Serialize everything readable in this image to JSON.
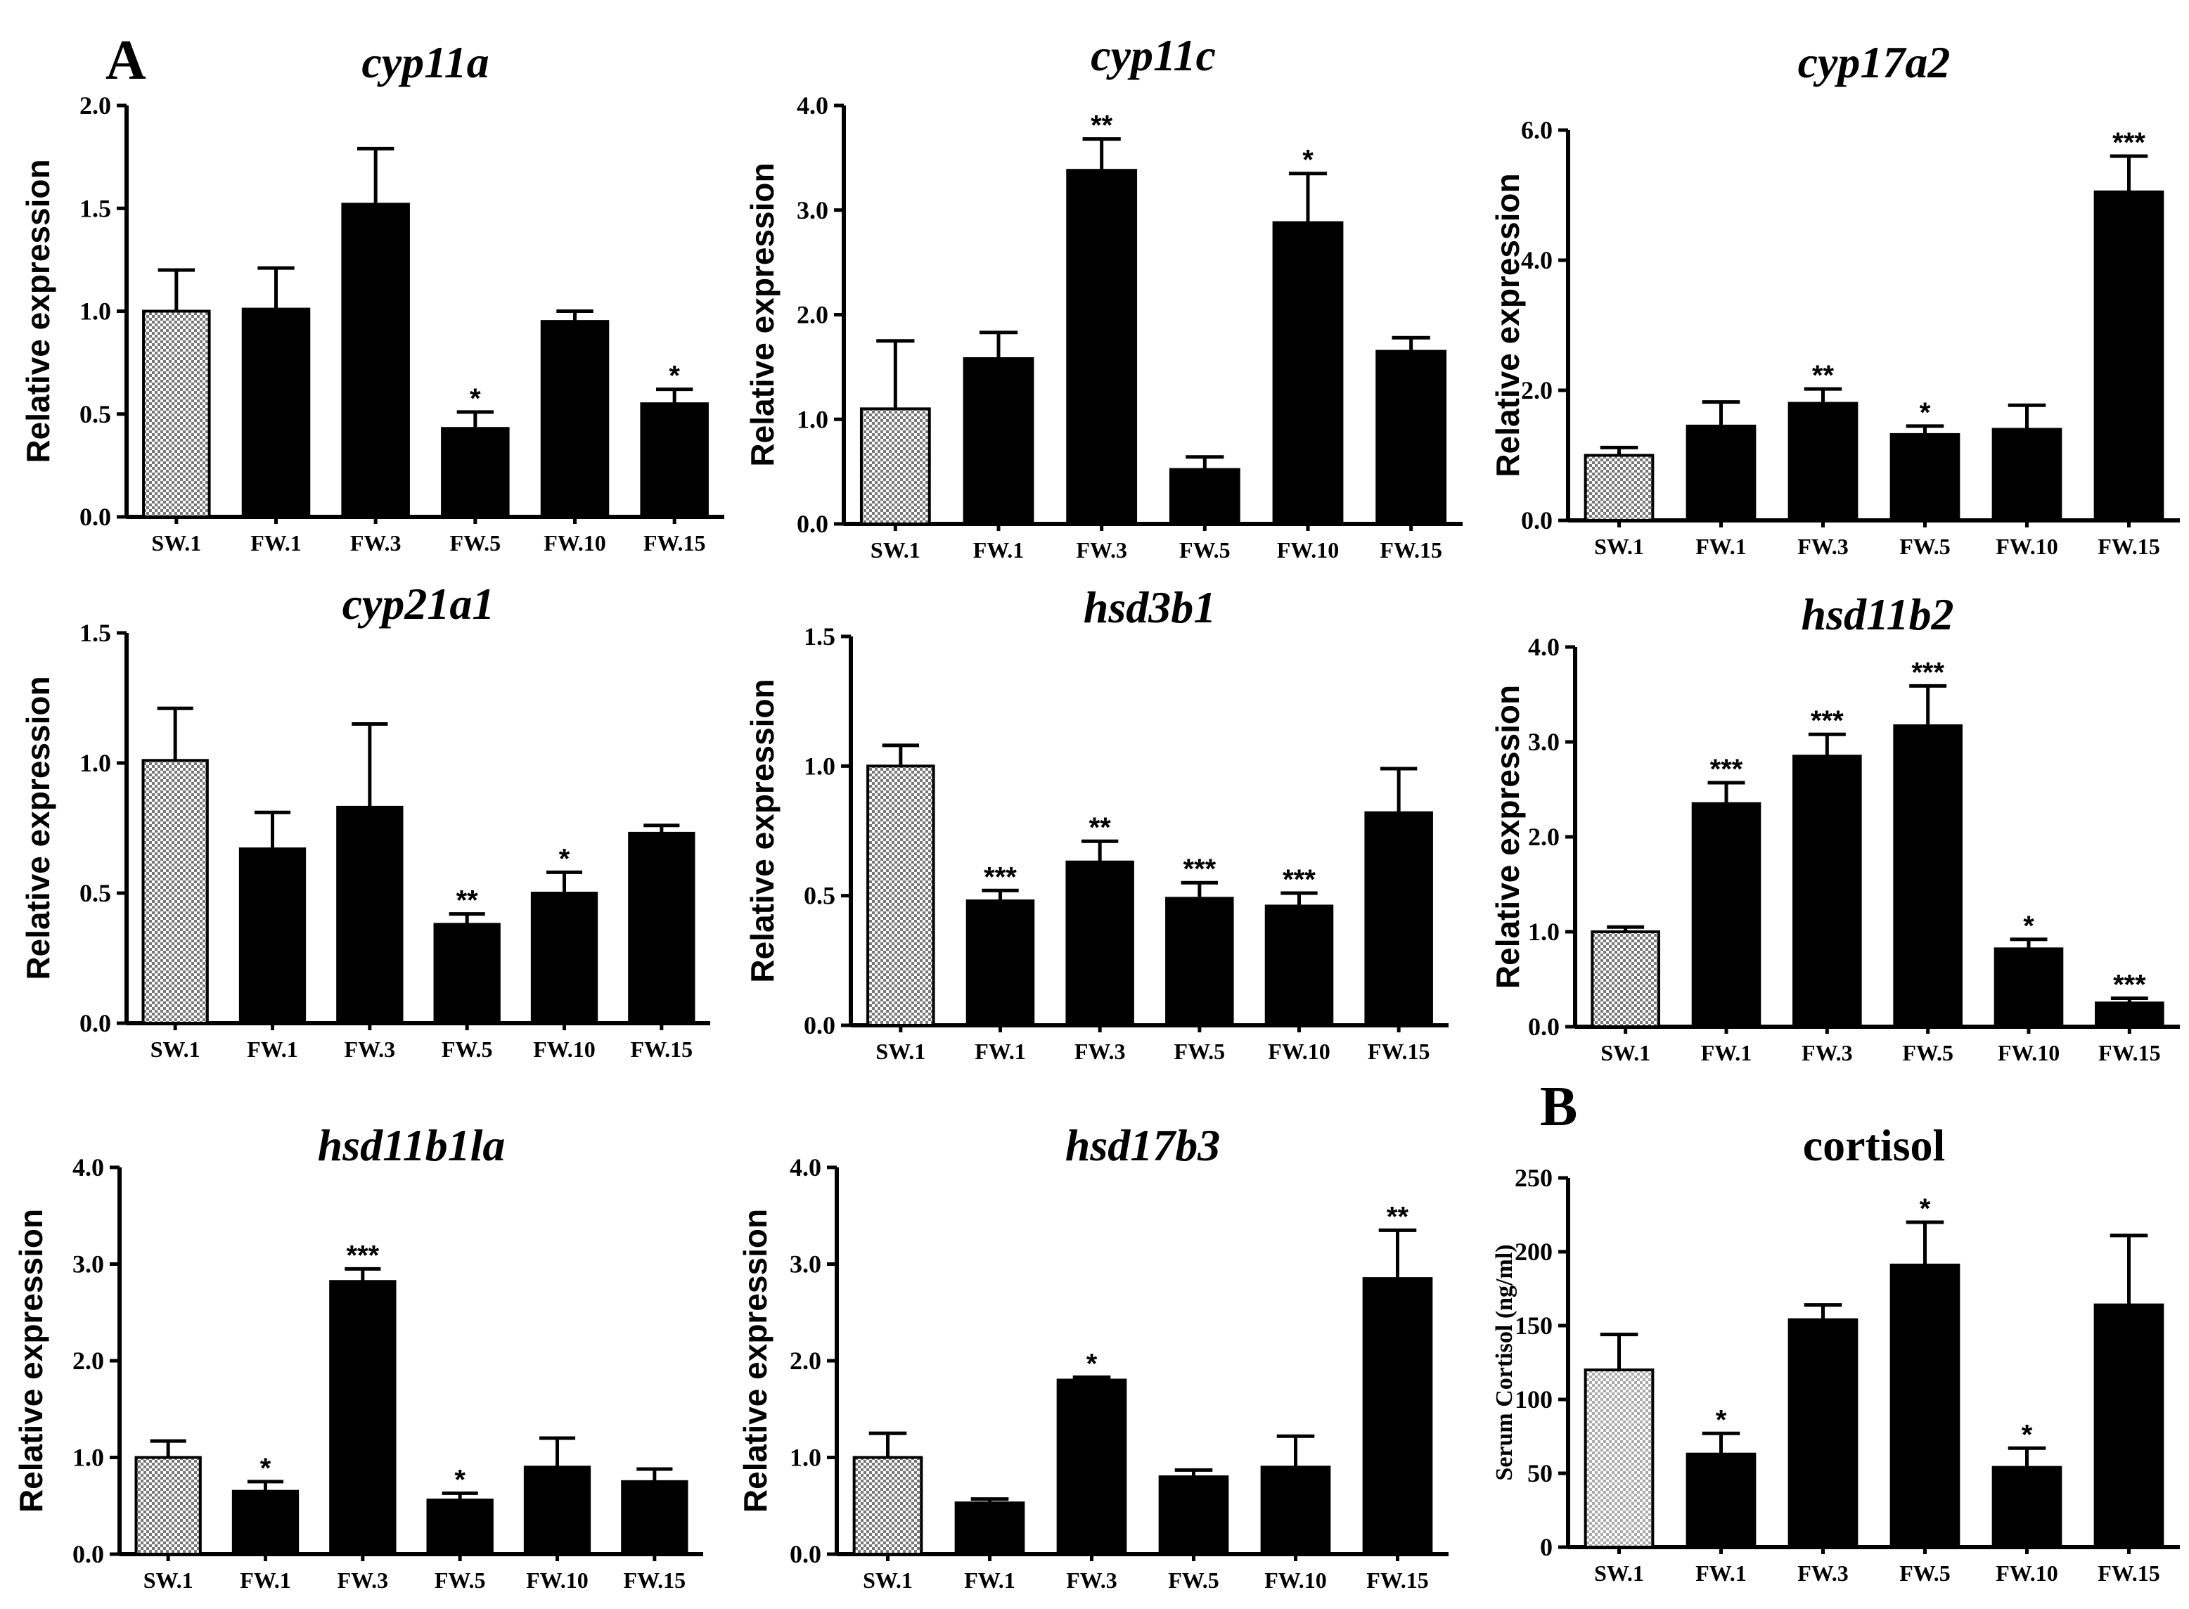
{
  "panel_labels": {
    "a": "A",
    "b": "B"
  },
  "colors": {
    "hatched_bar": "checkered-gray",
    "solid_bar": "#000000",
    "axis": "#000000"
  },
  "chart_data": [
    {
      "type": "bar",
      "title": "cyp11a",
      "ylabel": "Relative expression",
      "ylim": [
        0,
        2.0
      ],
      "yticks": [
        "0.0",
        "0.5",
        "1.0",
        "1.5",
        "2.0"
      ],
      "categories": [
        "SW.1",
        "FW.1",
        "FW.3",
        "FW.5",
        "FW.10",
        "FW.15"
      ],
      "values": [
        1.0,
        1.01,
        1.52,
        0.43,
        0.95,
        0.55
      ],
      "errors": [
        0.2,
        0.2,
        0.27,
        0.08,
        0.05,
        0.07
      ],
      "significance": [
        "",
        "",
        "",
        "*",
        "",
        "*"
      ]
    },
    {
      "type": "bar",
      "title": "cyp11c",
      "ylabel": "Relative expression",
      "ylim": [
        0,
        4.0
      ],
      "yticks": [
        "0.0",
        "1.0",
        "2.0",
        "3.0",
        "4.0"
      ],
      "categories": [
        "SW.1",
        "FW.1",
        "FW.3",
        "FW.5",
        "FW.10",
        "FW.15"
      ],
      "values": [
        1.1,
        1.58,
        3.38,
        0.52,
        2.88,
        1.65
      ],
      "errors": [
        0.65,
        0.25,
        0.3,
        0.12,
        0.47,
        0.13
      ],
      "significance": [
        "",
        "",
        "**",
        "",
        "*",
        ""
      ]
    },
    {
      "type": "bar",
      "title": "cyp17a2",
      "ylabel": "Relative expression",
      "ylim": [
        0,
        6.0
      ],
      "yticks": [
        "0.0",
        "2.0",
        "4.0",
        "6.0"
      ],
      "categories": [
        "SW.1",
        "FW.1",
        "FW.3",
        "FW.5",
        "FW.10",
        "FW.15"
      ],
      "values": [
        1.0,
        1.45,
        1.8,
        1.32,
        1.4,
        5.05
      ],
      "errors": [
        0.12,
        0.37,
        0.22,
        0.13,
        0.37,
        0.55
      ],
      "significance": [
        "",
        "",
        "**",
        "*",
        "",
        "***"
      ]
    },
    {
      "type": "bar",
      "title": "cyp21a1",
      "ylabel": "Relative expression",
      "ylim": [
        0,
        1.5
      ],
      "yticks": [
        "0.0",
        "0.5",
        "1.0",
        "1.5"
      ],
      "categories": [
        "SW.1",
        "FW.1",
        "FW.3",
        "FW.5",
        "FW.10",
        "FW.15"
      ],
      "values": [
        1.01,
        0.67,
        0.83,
        0.38,
        0.5,
        0.73
      ],
      "errors": [
        0.2,
        0.14,
        0.32,
        0.04,
        0.08,
        0.03
      ],
      "significance": [
        "",
        "",
        "",
        "**",
        "*",
        ""
      ]
    },
    {
      "type": "bar",
      "title": "hsd3b1",
      "ylabel": "Relative expression",
      "ylim": [
        0,
        1.5
      ],
      "yticks": [
        "0.0",
        "0.5",
        "1.0",
        "1.5"
      ],
      "categories": [
        "SW.1",
        "FW.1",
        "FW.3",
        "FW.5",
        "FW.10",
        "FW.15"
      ],
      "values": [
        1.0,
        0.48,
        0.63,
        0.49,
        0.46,
        0.82
      ],
      "errors": [
        0.08,
        0.04,
        0.08,
        0.06,
        0.05,
        0.17
      ],
      "significance": [
        "",
        "***",
        "**",
        "***",
        "***",
        ""
      ]
    },
    {
      "type": "bar",
      "title": "hsd11b2",
      "ylabel": "Relative expression",
      "ylim": [
        0,
        4.0
      ],
      "yticks": [
        "0.0",
        "1.0",
        "2.0",
        "3.0",
        "4.0"
      ],
      "categories": [
        "SW.1",
        "FW.1",
        "FW.3",
        "FW.5",
        "FW.10",
        "FW.15"
      ],
      "values": [
        1.0,
        2.35,
        2.85,
        3.17,
        0.82,
        0.25
      ],
      "errors": [
        0.05,
        0.22,
        0.23,
        0.42,
        0.1,
        0.05
      ],
      "significance": [
        "",
        "***",
        "***",
        "***",
        "*",
        "***"
      ]
    },
    {
      "type": "bar",
      "title": "hsd11b1la",
      "ylabel": "Relative expression",
      "ylim": [
        0,
        4.0
      ],
      "yticks": [
        "0.0",
        "1.0",
        "2.0",
        "3.0",
        "4.0"
      ],
      "categories": [
        "SW.1",
        "FW.1",
        "FW.3",
        "FW.5",
        "FW.10",
        "FW.15"
      ],
      "values": [
        1.0,
        0.65,
        2.82,
        0.56,
        0.9,
        0.75
      ],
      "errors": [
        0.17,
        0.1,
        0.13,
        0.07,
        0.3,
        0.13
      ],
      "significance": [
        "",
        "*",
        "***",
        "*",
        "",
        ""
      ]
    },
    {
      "type": "bar",
      "title": "hsd17b3",
      "ylabel": "Relative expression",
      "ylim": [
        0,
        4.0
      ],
      "yticks": [
        "0.0",
        "1.0",
        "2.0",
        "3.0",
        "4.0"
      ],
      "categories": [
        "SW.1",
        "FW.1",
        "FW.3",
        "FW.5",
        "FW.10",
        "FW.15"
      ],
      "values": [
        1.0,
        0.53,
        1.8,
        0.8,
        0.9,
        2.85
      ],
      "errors": [
        0.25,
        0.04,
        0.03,
        0.07,
        0.32,
        0.5
      ],
      "significance": [
        "",
        "",
        "*",
        "",
        "",
        "**"
      ]
    },
    {
      "type": "bar",
      "title": "cortisol",
      "ylabel": "Serum Cortisol (ng/ml)",
      "ylim": [
        0,
        250
      ],
      "yticks": [
        "0",
        "50",
        "100",
        "150",
        "200",
        "250"
      ],
      "categories": [
        "SW.1",
        "FW.1",
        "FW.3",
        "FW.5",
        "FW.10",
        "FW.15"
      ],
      "values": [
        120,
        63,
        154,
        191,
        54,
        164
      ],
      "errors": [
        24,
        14,
        10,
        29,
        13,
        47
      ],
      "significance": [
        "",
        "*",
        "",
        "*",
        "*",
        ""
      ]
    }
  ]
}
